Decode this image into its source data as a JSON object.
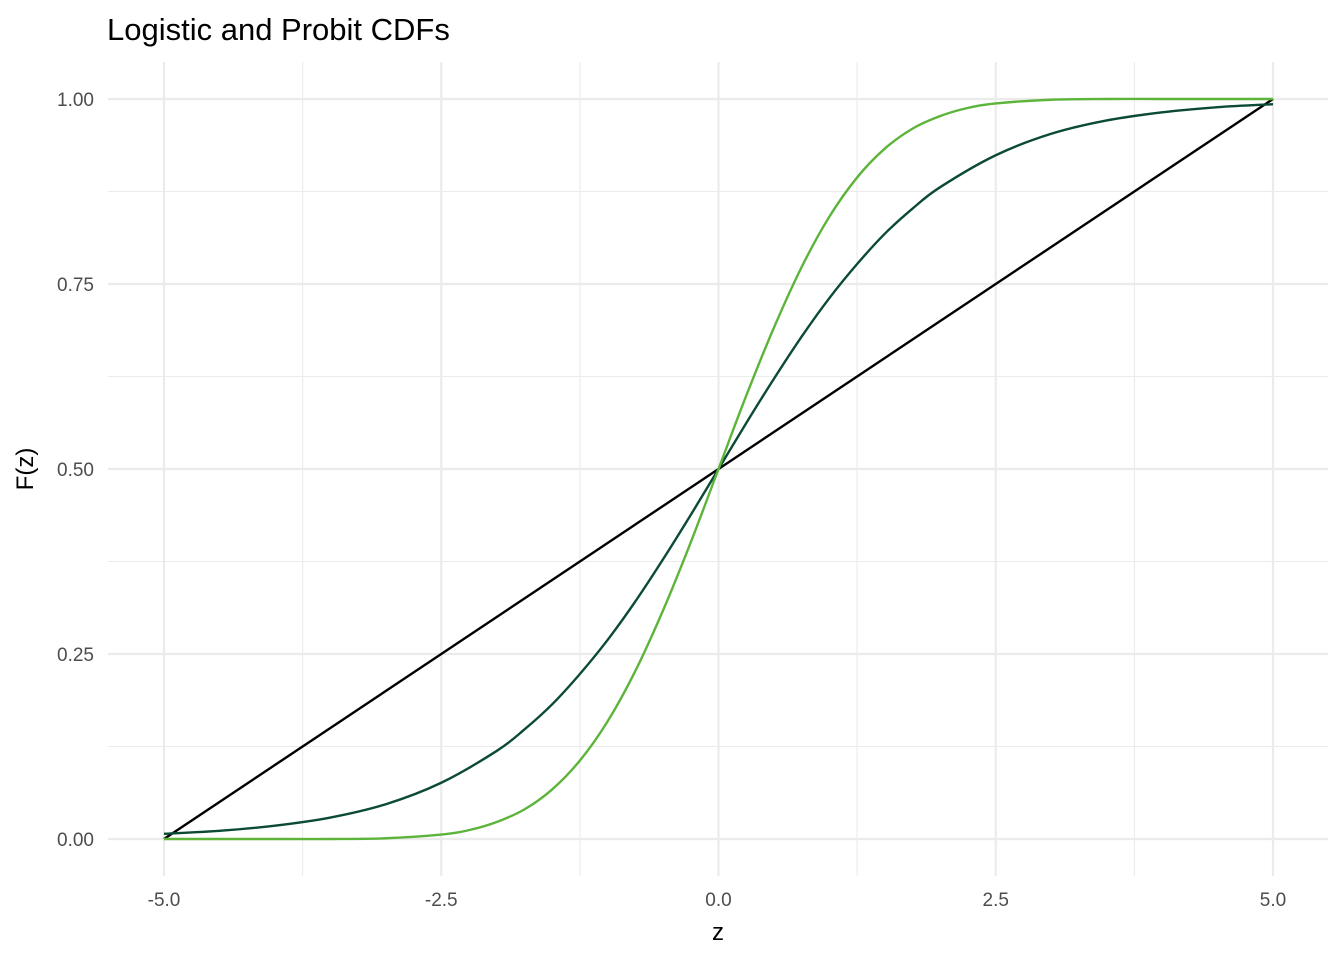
{
  "chart_data": {
    "type": "line",
    "title": "Logistic and Probit CDFs",
    "xlabel": "z",
    "ylabel": "F(z)",
    "xlim": [
      -5.0,
      5.0
    ],
    "ylim": [
      0.0,
      1.0
    ],
    "x_ticks": [
      -5.0,
      -2.5,
      0.0,
      2.5,
      5.0
    ],
    "x_tick_labels": [
      "-5.0",
      "-2.5",
      "0.0",
      "2.5",
      "5.0"
    ],
    "y_ticks": [
      0.0,
      0.25,
      0.5,
      0.75,
      1.0
    ],
    "y_tick_labels": [
      "0.00",
      "0.25",
      "0.50",
      "0.75",
      "1.00"
    ],
    "grid": true,
    "legend": "none",
    "series": [
      {
        "color": "#000000",
        "x": [
          -5,
          5
        ],
        "y": [
          0.0,
          1.0
        ]
      },
      {
        "color": "#0b4a34",
        "x": [
          -5,
          -4.5,
          -4,
          -3.5,
          -3,
          -2.5,
          -2,
          -1.75,
          -1.5,
          -1.25,
          -1,
          -0.75,
          -0.5,
          -0.25,
          0,
          0.25,
          0.5,
          0.75,
          1,
          1.25,
          1.5,
          1.75,
          2,
          2.5,
          3,
          3.5,
          4,
          4.5,
          5
        ],
        "y": [
          0.007,
          0.011,
          0.018,
          0.029,
          0.047,
          0.076,
          0.119,
          0.148,
          0.182,
          0.223,
          0.269,
          0.321,
          0.378,
          0.438,
          0.5,
          0.562,
          0.622,
          0.679,
          0.731,
          0.777,
          0.818,
          0.852,
          0.881,
          0.924,
          0.953,
          0.971,
          0.982,
          0.989,
          0.993
        ]
      },
      {
        "color": "#5db43a",
        "x": [
          -5,
          -4,
          -3.5,
          -3,
          -2.5,
          -2.25,
          -2,
          -1.75,
          -1.5,
          -1.25,
          -1,
          -0.75,
          -0.5,
          -0.25,
          0,
          0.25,
          0.5,
          0.75,
          1,
          1.25,
          1.5,
          1.75,
          2,
          2.25,
          2.5,
          3,
          3.5,
          4,
          5
        ],
        "y": [
          0.0,
          0.0,
          0.0,
          0.001,
          0.006,
          0.012,
          0.023,
          0.04,
          0.067,
          0.106,
          0.159,
          0.227,
          0.309,
          0.401,
          0.5,
          0.599,
          0.691,
          0.773,
          0.841,
          0.894,
          0.933,
          0.96,
          0.977,
          0.988,
          0.994,
          0.999,
          1.0,
          1.0,
          1.0
        ]
      }
    ]
  }
}
